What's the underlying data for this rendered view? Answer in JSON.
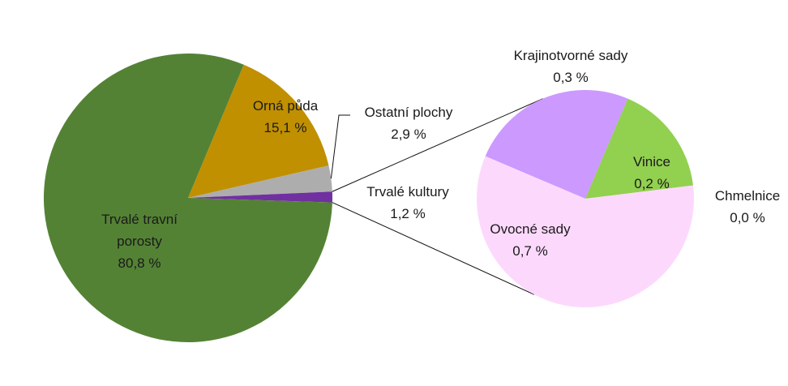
{
  "chart_data": [
    {
      "type": "pie",
      "slices": [
        {
          "label": "Orná půda",
          "value_label": "15,1 %",
          "value": 15.1,
          "color": "#C09000"
        },
        {
          "label": "Ostatní plochy",
          "value_label": "2,9 %",
          "value": 2.9,
          "color": "#ADADAD"
        },
        {
          "label": "Trvalé kultury",
          "value_label": "1,2 %",
          "value": 1.2,
          "color": "#7030A0"
        },
        {
          "label": "Trvalé travní porosty",
          "value_label": "80,8 %",
          "value": 80.8,
          "color": "#548235"
        }
      ]
    },
    {
      "type": "pie",
      "slices": [
        {
          "label": "Krajinotvorné sady",
          "value_label": "0,3 %",
          "value": 0.3,
          "color": "#CC99FF"
        },
        {
          "label": "Vinice",
          "value_label": "0,2 %",
          "value": 0.2,
          "color": "#92D050"
        },
        {
          "label": "Chmelnice",
          "value_label": "0,0 %",
          "value": 0.0,
          "color": "#FFCCCC"
        },
        {
          "label": "Ovocné sady",
          "value_label": "0,7 %",
          "value": 0.7,
          "color": "#FCD9FC"
        }
      ]
    }
  ]
}
